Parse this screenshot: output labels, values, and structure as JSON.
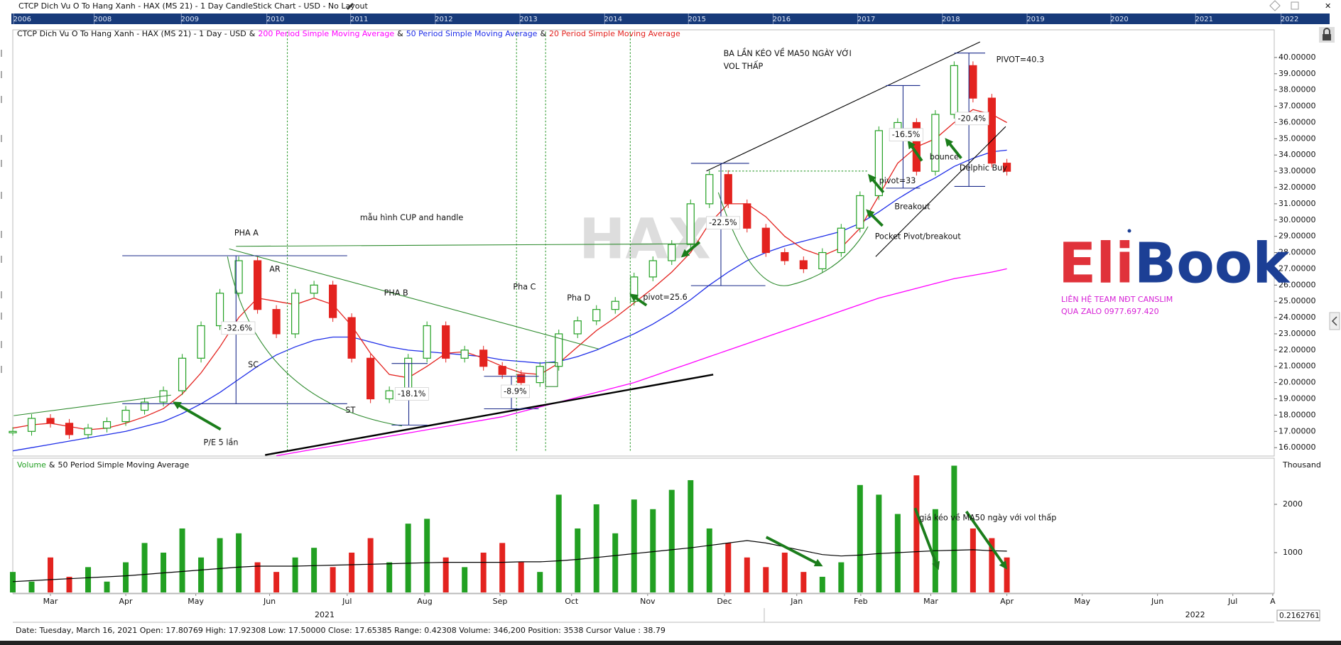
{
  "window_title": "CTCP Dich Vu O To Hang Xanh - HAX (MS 21) - 1 Day CandleStick Chart - USD - No Layout",
  "overview_years": [
    "2006",
    "2008",
    "2009",
    "2010",
    "2011",
    "2012",
    "2013",
    "2014",
    "2015",
    "2016",
    "2017",
    "2018",
    "2019",
    "2020",
    "2021",
    "2022"
  ],
  "status_bar": "Date: Tuesday, March 16, 2021 Open: 17.80769 High: 17.92308 Low: 17.50000 Close: 17.65385 Range: 0.42308 Volume: 346,200 Position: 3538 Cursor Value : 38.79",
  "cursor_readout": "0.2162761",
  "chart_data": [
    {
      "type": "candlestick",
      "title": "CTCP Dich Vu O To Hang Xanh - HAX (MS 21) - 1 Day - USD",
      "legend_separator": "&",
      "x": [
        0,
        0.25,
        0.5,
        0.75,
        1,
        1.25,
        1.5,
        1.75,
        2,
        2.25,
        2.5,
        2.75,
        3,
        3.25,
        3.5,
        3.75,
        4,
        4.25,
        4.5,
        4.75,
        5,
        5.25,
        5.5,
        5.75,
        6,
        6.25,
        6.5,
        6.75,
        7,
        7.25,
        7.5,
        7.75,
        8,
        8.25,
        8.5,
        8.75,
        9,
        9.25,
        9.5,
        9.75,
        10,
        10.25,
        10.5,
        10.75,
        11,
        11.25,
        11.5,
        11.75,
        12,
        12.25,
        12.5,
        12.75,
        13,
        13.2
      ],
      "values": [
        17.0,
        17.8,
        17.5,
        16.8,
        17.2,
        17.6,
        18.3,
        18.8,
        19.5,
        21.5,
        23.5,
        25.5,
        27.5,
        24.5,
        23.0,
        25.5,
        26.0,
        24.0,
        21.5,
        19.0,
        19.5,
        21.5,
        23.5,
        21.5,
        22.0,
        21.0,
        20.5,
        20.0,
        21.0,
        23.0,
        23.8,
        24.5,
        25.0,
        26.5,
        27.5,
        28.5,
        31.0,
        32.8,
        31.0,
        29.5,
        28.0,
        27.5,
        27.0,
        28.0,
        29.5,
        31.5,
        35.5,
        36.0,
        33.0,
        36.5,
        39.5,
        37.5,
        33.5,
        33.0
      ],
      "color_up": "#22a022",
      "color_down": "#e3231f",
      "series": [
        {
          "name": "200 Period Simple Moving Average",
          "color": "#ff00ff",
          "values": [
            null,
            null,
            null,
            null,
            null,
            null,
            null,
            null,
            null,
            null,
            null,
            null,
            null,
            null,
            15.5,
            15.7,
            15.9,
            16.1,
            16.3,
            16.5,
            16.7,
            16.9,
            17.1,
            17.3,
            17.5,
            17.7,
            17.9,
            18.2,
            18.5,
            18.8,
            19.1,
            19.4,
            19.7,
            20.0,
            20.4,
            20.8,
            21.2,
            21.6,
            22.0,
            22.4,
            22.8,
            23.2,
            23.6,
            24.0,
            24.4,
            24.8,
            25.2,
            25.5,
            25.8,
            26.1,
            26.4,
            26.6,
            26.8,
            27.0
          ]
        },
        {
          "name": "50 Period Simple Moving Average",
          "color": "#1f2ee8",
          "values": [
            15.8,
            16.0,
            16.2,
            16.4,
            16.6,
            16.8,
            17.0,
            17.3,
            17.6,
            18.1,
            18.7,
            19.4,
            20.2,
            21.0,
            21.7,
            22.2,
            22.6,
            22.8,
            22.8,
            22.5,
            22.2,
            22.0,
            21.9,
            21.8,
            21.7,
            21.6,
            21.4,
            21.3,
            21.2,
            21.3,
            21.6,
            22.0,
            22.5,
            23.0,
            23.6,
            24.3,
            25.1,
            26.0,
            26.8,
            27.5,
            28.0,
            28.4,
            28.7,
            29.0,
            29.3,
            29.8,
            30.5,
            31.3,
            32.0,
            32.6,
            33.3,
            33.8,
            34.2,
            34.3
          ]
        },
        {
          "name": "20 Period Simple Moving Average",
          "color": "#e3231f",
          "values": [
            17.2,
            17.4,
            17.5,
            17.3,
            17.1,
            17.2,
            17.5,
            17.9,
            18.4,
            19.3,
            20.6,
            22.2,
            24.0,
            25.2,
            25.0,
            24.8,
            25.2,
            24.8,
            23.5,
            21.8,
            20.5,
            20.3,
            21.0,
            21.8,
            21.9,
            21.5,
            21.0,
            20.6,
            20.5,
            21.2,
            22.2,
            23.2,
            24.0,
            24.9,
            25.8,
            26.8,
            28.0,
            29.8,
            31.0,
            31.0,
            30.2,
            29.0,
            28.2,
            27.8,
            28.3,
            29.5,
            31.5,
            33.5,
            34.5,
            35.0,
            36.0,
            36.8,
            36.5,
            36.0
          ]
        }
      ],
      "xlim": [
        0,
        16.75
      ],
      "ylim": [
        15.57,
        41.57
      ],
      "yticks": [
        {
          "value": 16,
          "label": "16.00000"
        },
        {
          "value": 17,
          "label": "17.00000"
        },
        {
          "value": 18,
          "label": "18.00000"
        },
        {
          "value": 19,
          "label": "19.00000"
        },
        {
          "value": 20,
          "label": "20.00000"
        },
        {
          "value": 21,
          "label": "21.00000"
        },
        {
          "value": 22,
          "label": "22.00000"
        },
        {
          "value": 23,
          "label": "23.00000"
        },
        {
          "value": 24,
          "label": "24.00000"
        },
        {
          "value": 25,
          "label": "25.00000"
        },
        {
          "value": 26,
          "label": "26.00000"
        },
        {
          "value": 27,
          "label": "27.00000"
        },
        {
          "value": 28,
          "label": "28.00000"
        },
        {
          "value": 29,
          "label": "29.00000"
        },
        {
          "value": 30,
          "label": "30.00000"
        },
        {
          "value": 31,
          "label": "31.00000"
        },
        {
          "value": 32,
          "label": "32.00000"
        },
        {
          "value": 33,
          "label": "33.00000"
        },
        {
          "value": 34,
          "label": "34.00000"
        },
        {
          "value": 35,
          "label": "35.00000"
        },
        {
          "value": 36,
          "label": "36.00000"
        },
        {
          "value": 37,
          "label": "37.00000"
        },
        {
          "value": 38,
          "label": "38.00000"
        },
        {
          "value": 39,
          "label": "39.00000"
        },
        {
          "value": 40,
          "label": "40.00000"
        }
      ],
      "annotations": [
        "PHA A",
        "AR",
        "SC",
        "ST",
        "PHA B",
        "Pha C",
        "Pha D",
        "mẫu hình CUP and handle",
        "BA LẦN KÉO VỀ MA50 NGÀY VỚI",
        "VOL THẤP",
        "P/E 5 lần",
        "-32.6%",
        "-18.1%",
        "-8.9%",
        "pivot=25.6",
        "-22.5%",
        "-16.5%",
        "pivot=33",
        "Breakout",
        "Pocket Pivot/breakout",
        "bounce",
        "Delphic Buy",
        "-20.4%",
        "PIVOT=40.3",
        "giá kéo về MA50 ngày với vol thấp"
      ],
      "watermark": "HAX",
      "logo": "EliBook",
      "contact": [
        "LIÊN HỆ TEAM NĐT CANSLIM",
        "QUA ZALO 0977.697.420"
      ]
    },
    {
      "type": "bar",
      "title": "Volume",
      "x": [
        0,
        0.25,
        0.5,
        0.75,
        1,
        1.25,
        1.5,
        1.75,
        2,
        2.25,
        2.5,
        2.75,
        3,
        3.25,
        3.5,
        3.75,
        4,
        4.25,
        4.5,
        4.75,
        5,
        5.25,
        5.5,
        5.75,
        6,
        6.25,
        6.5,
        6.75,
        7,
        7.25,
        7.5,
        7.75,
        8,
        8.25,
        8.5,
        8.75,
        9,
        9.25,
        9.5,
        9.75,
        10,
        10.25,
        10.5,
        10.75,
        11,
        11.25,
        11.5,
        11.75,
        12,
        12.25,
        12.5,
        12.75,
        13,
        13.2
      ],
      "values": [
        600,
        400,
        900,
        500,
        700,
        400,
        800,
        1200,
        1000,
        1500,
        900,
        1300,
        1400,
        800,
        600,
        900,
        1100,
        700,
        1000,
        1300,
        800,
        1600,
        1700,
        900,
        700,
        1000,
        1200,
        800,
        600,
        2200,
        1500,
        2000,
        1400,
        2100,
        1900,
        2300,
        2500,
        1500,
        1200,
        900,
        700,
        1000,
        600,
        500,
        800,
        2400,
        2200,
        1800,
        2600,
        1900,
        2800,
        1500,
        1300,
        900
      ],
      "series": [
        {
          "name": "50 Period Simple Moving Average",
          "color": "#000000",
          "values": [
            400,
            420,
            440,
            460,
            480,
            500,
            520,
            550,
            580,
            610,
            640,
            670,
            700,
            720,
            720,
            720,
            730,
            740,
            750,
            760,
            770,
            780,
            790,
            800,
            800,
            800,
            800,
            810,
            810,
            830,
            860,
            900,
            940,
            980,
            1020,
            1060,
            1100,
            1150,
            1200,
            1250,
            1200,
            1120,
            1040,
            960,
            930,
            950,
            980,
            1000,
            1020,
            1040,
            1050,
            1060,
            1040,
            1030
          ]
        }
      ],
      "xlim": [
        0,
        16.75
      ],
      "ylim": [
        176,
        2882
      ],
      "yticks": [
        1000,
        2000
      ],
      "y_label": "Thousand",
      "xticks": [
        {
          "value": 0.5,
          "label": "Mar"
        },
        {
          "value": 1.5,
          "label": "Apr"
        },
        {
          "value": 2.43,
          "label": "May"
        },
        {
          "value": 3.41,
          "label": "Jun"
        },
        {
          "value": 4.44,
          "label": "Jul"
        },
        {
          "value": 5.47,
          "label": "Aug"
        },
        {
          "value": 6.47,
          "label": "Sep"
        },
        {
          "value": 7.42,
          "label": "Oct"
        },
        {
          "value": 8.43,
          "label": "Nov"
        },
        {
          "value": 9.45,
          "label": "Dec"
        },
        {
          "value": 10.41,
          "label": "Jan"
        },
        {
          "value": 11.26,
          "label": "Feb"
        },
        {
          "value": 12.19,
          "label": "Mar"
        },
        {
          "value": 13.2,
          "label": "Apr"
        },
        {
          "value": 14.2,
          "label": "May"
        },
        {
          "value": 15.2,
          "label": "Jun"
        },
        {
          "value": 16.2,
          "label": "Jul"
        },
        {
          "value": 16.73,
          "label": "A"
        }
      ],
      "year_ticks": [
        {
          "value": 4.14,
          "label": "2021"
        },
        {
          "value": 15.7,
          "label": "2022"
        }
      ]
    }
  ]
}
